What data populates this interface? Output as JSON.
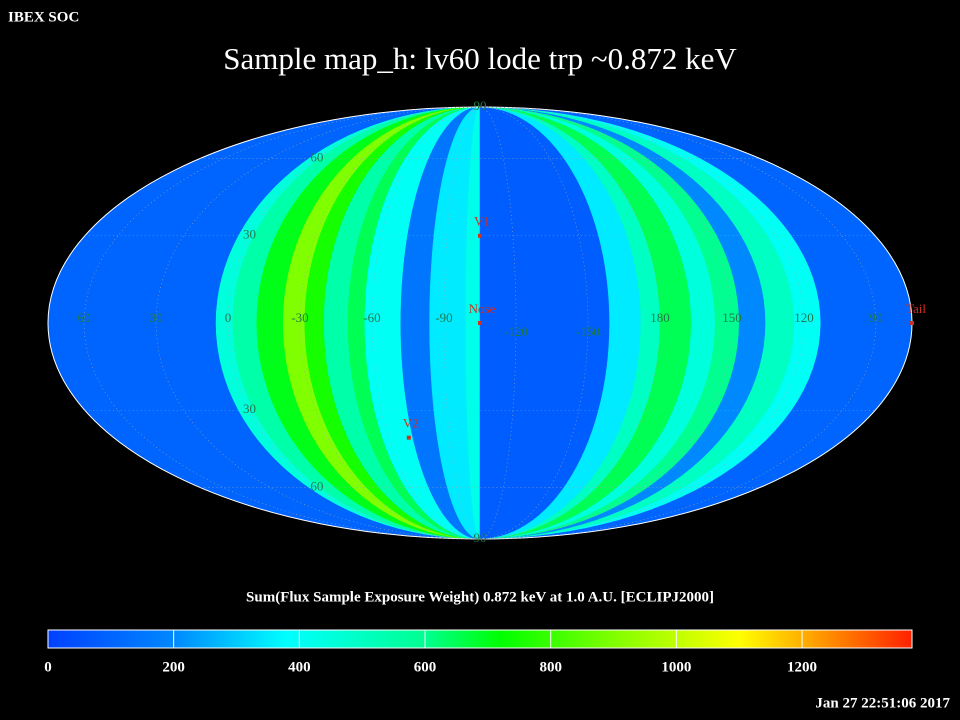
{
  "header": "IBEX SOC",
  "chart_data": {
    "type": "mollweide",
    "title": "Sample map_h: lv60 lode trp ~0.872 keV",
    "center_longitude": -105,
    "lon_labels": [
      60,
      30,
      0,
      -30,
      -60,
      -90,
      -120,
      -150,
      180,
      150,
      120,
      90
    ],
    "lat_labels": [
      {
        "value": 90,
        "label": "90"
      },
      60,
      30,
      {
        "value": -30,
        "label": "30"
      },
      {
        "value": -60,
        "label": "60"
      },
      {
        "value": -90,
        "label": "90"
      }
    ],
    "bands": [
      {
        "lon_from": 75,
        "lon_to": 5,
        "value": 100
      },
      {
        "lon_from": 5,
        "lon_to": -2,
        "value": 450
      },
      {
        "lon_from": -2,
        "lon_to": -12,
        "value": 550
      },
      {
        "lon_from": -12,
        "lon_to": -23,
        "value": 700
      },
      {
        "lon_from": -23,
        "lon_to": -32,
        "value": 900
      },
      {
        "lon_from": -32,
        "lon_to": -40,
        "value": 750
      },
      {
        "lon_from": -40,
        "lon_to": -50,
        "value": 550
      },
      {
        "lon_from": -50,
        "lon_to": -57,
        "value": 650
      },
      {
        "lon_from": -57,
        "lon_to": -72,
        "value": 400
      },
      {
        "lon_from": -72,
        "lon_to": -84,
        "value": 150
      },
      {
        "lon_from": -84,
        "lon_to": -99,
        "value": 350
      },
      {
        "lon_from": -99,
        "lon_to": -105,
        "value": 420
      },
      {
        "lon_from": -105,
        "lon_to": -159,
        "value": 80
      },
      {
        "lon_from": -159,
        "lon_to": -172,
        "value": 350
      },
      {
        "lon_from": -172,
        "lon_to": 180,
        "value": 500
      },
      {
        "lon_from": 180,
        "lon_to": 167,
        "value": 650
      },
      {
        "lon_from": 167,
        "lon_to": 157,
        "value": 450
      },
      {
        "lon_from": 157,
        "lon_to": 147,
        "value": 600
      },
      {
        "lon_from": 147,
        "lon_to": 136,
        "value": 200
      },
      {
        "lon_from": 136,
        "lon_to": 124,
        "value": 500
      },
      {
        "lon_from": 124,
        "lon_to": 113,
        "value": 400
      },
      {
        "lon_from": 113,
        "lon_to": 75,
        "value": 100
      }
    ],
    "points": [
      {
        "name": "V1",
        "lon": -105,
        "lat": 30
      },
      {
        "name": "Nose",
        "lon": -105,
        "lat": 0
      },
      {
        "name": "V2",
        "lon": -70,
        "lat": -40
      },
      {
        "name": "Tail",
        "lon": 75,
        "lat": 0
      }
    ],
    "colorbar": {
      "label": "Sum(Flux Sample Exposure Weight)  0.872 keV at 1.0 A.U. [ECLIPJ2000]",
      "lim": [
        0,
        1375
      ],
      "ticks": [
        0,
        200,
        400,
        600,
        800,
        1000,
        1200
      ],
      "colormap": [
        [
          0,
          "#0040ff"
        ],
        [
          200,
          "#0088ff"
        ],
        [
          380,
          "#00ffff"
        ],
        [
          600,
          "#00ff90"
        ],
        [
          720,
          "#00ff00"
        ],
        [
          900,
          "#80ff00"
        ],
        [
          1100,
          "#ffff00"
        ],
        [
          1220,
          "#ffa000"
        ],
        [
          1375,
          "#ff2000"
        ]
      ]
    }
  },
  "timestamp": "Jan 27 22:51:06 2017"
}
